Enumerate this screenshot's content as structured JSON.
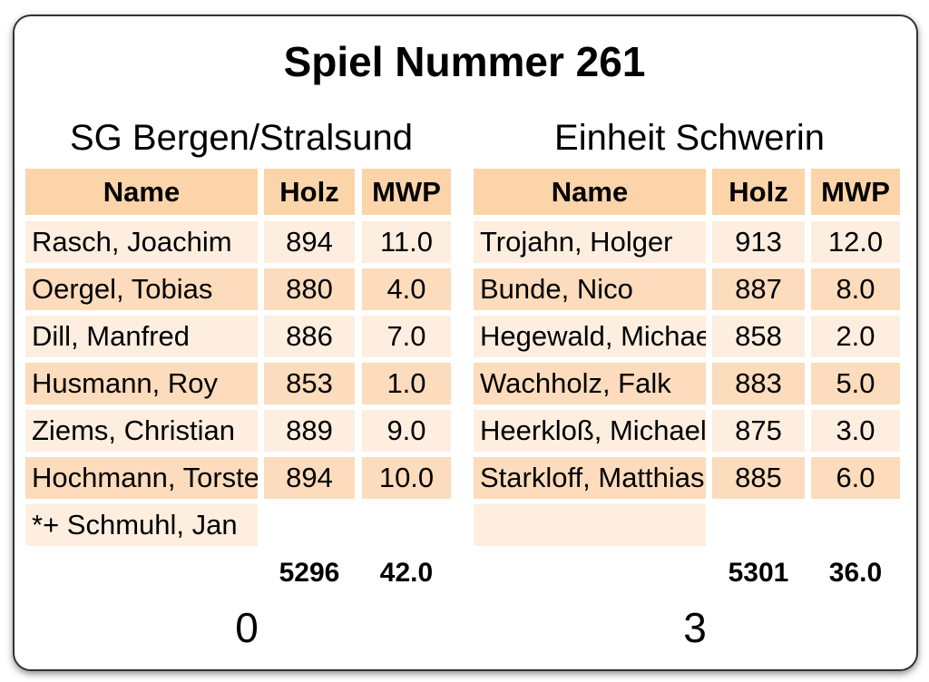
{
  "title": "Spiel Nummer 261",
  "columns": {
    "name": "Name",
    "holz": "Holz",
    "mwp": "MWP"
  },
  "colors": {
    "header": "#fcd4a9",
    "row_light": "#fdeedf",
    "row_dark": "#fcdcbc",
    "border": "#333333"
  },
  "home": {
    "team": "SG Bergen/Stralsund",
    "players": [
      {
        "name": "Rasch, Joachim",
        "holz": "894",
        "mwp": "11.0"
      },
      {
        "name": "Oergel, Tobias",
        "holz": "880",
        "mwp": "4.0"
      },
      {
        "name": "Dill, Manfred",
        "holz": "886",
        "mwp": "7.0"
      },
      {
        "name": "Husmann, Roy",
        "holz": "853",
        "mwp": "1.0"
      },
      {
        "name": "Ziems, Christian",
        "holz": "889",
        "mwp": "9.0"
      },
      {
        "name": "Hochmann, Torsten",
        "holz": "894",
        "mwp": "10.0"
      },
      {
        "name": "*+ Schmuhl, Jan",
        "holz": "",
        "mwp": ""
      }
    ],
    "total_holz": "5296",
    "total_mwp": "42.0",
    "score": "0"
  },
  "away": {
    "team": "Einheit Schwerin",
    "players": [
      {
        "name": "Trojahn, Holger",
        "holz": "913",
        "mwp": "12.0"
      },
      {
        "name": "Bunde, Nico",
        "holz": "887",
        "mwp": "8.0"
      },
      {
        "name": "Hegewald, Michael",
        "holz": "858",
        "mwp": "2.0"
      },
      {
        "name": "Wachholz, Falk",
        "holz": "883",
        "mwp": "5.0"
      },
      {
        "name": "Heerkloß, Michael",
        "holz": "875",
        "mwp": "3.0"
      },
      {
        "name": "Starkloff, Matthias",
        "holz": "885",
        "mwp": "6.0"
      },
      {
        "name": "",
        "holz": "",
        "mwp": ""
      }
    ],
    "total_holz": "5301",
    "total_mwp": "36.0",
    "score": "3"
  }
}
